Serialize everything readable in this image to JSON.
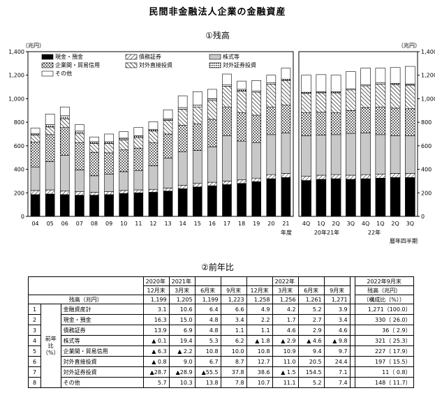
{
  "title": "民間非金融法人企業の金融資産",
  "chart_data": [
    {
      "type": "bar",
      "subtitle": "①残高",
      "unit_left": "（兆円）",
      "xlabel": "年度",
      "ylim": [
        0,
        1400
      ],
      "yticks": [
        "0",
        "200",
        "400",
        "600",
        "800",
        "1,000",
        "1,200",
        "1,400"
      ],
      "categories": [
        "04",
        "05",
        "06",
        "07",
        "08",
        "09",
        "10",
        "11",
        "12",
        "13",
        "14",
        "15",
        "16",
        "17",
        "18",
        "19",
        "20",
        "21"
      ],
      "legend": [
        "現金・預金",
        "債務証券",
        "株式等",
        "企業間・貿易信用",
        "対外直接投資",
        "対外証券投資",
        "その他"
      ],
      "series": [
        {
          "name": "現金・預金",
          "values": [
            185,
            190,
            185,
            180,
            180,
            185,
            195,
            200,
            205,
            215,
            235,
            250,
            260,
            270,
            280,
            295,
            320,
            330
          ]
        },
        {
          "name": "債務証券",
          "values": [
            35,
            35,
            30,
            30,
            25,
            25,
            25,
            25,
            25,
            25,
            30,
            30,
            30,
            30,
            30,
            30,
            35,
            35
          ]
        },
        {
          "name": "株式等",
          "values": [
            200,
            240,
            305,
            185,
            140,
            150,
            160,
            165,
            200,
            255,
            285,
            280,
            300,
            385,
            330,
            300,
            340,
            345
          ]
        },
        {
          "name": "企業間・貿易信用",
          "values": [
            210,
            230,
            235,
            230,
            200,
            180,
            185,
            190,
            195,
            205,
            225,
            225,
            235,
            245,
            240,
            235,
            235,
            235
          ]
        },
        {
          "name": "対外直接投資",
          "values": [
            60,
            65,
            75,
            80,
            75,
            80,
            85,
            90,
            100,
            115,
            135,
            145,
            160,
            175,
            185,
            195,
            195,
            210
          ]
        },
        {
          "name": "対外証券投資",
          "values": [
            15,
            20,
            25,
            20,
            15,
            15,
            15,
            15,
            15,
            15,
            15,
            15,
            15,
            15,
            15,
            10,
            10,
            10
          ]
        },
        {
          "name": "その他",
          "values": [
            45,
            90,
            75,
            55,
            40,
            65,
            55,
            70,
            65,
            75,
            100,
            115,
            80,
            90,
            70,
            90,
            65,
            95
          ]
        }
      ]
    },
    {
      "type": "bar",
      "unit_right": "（兆円）",
      "xlabel": "暦年四半期",
      "ylim": [
        0,
        1400
      ],
      "yticks": [
        "0",
        "200",
        "400",
        "600",
        "800",
        "1,000",
        "1,200",
        "1,400"
      ],
      "categories": [
        "4Q",
        "1Q",
        "2Q",
        "3Q",
        "4Q",
        "1Q",
        "2Q",
        "3Q"
      ],
      "year_labels": [
        "20年21年",
        "22年"
      ],
      "series": [
        {
          "name": "現金・預金",
          "values": [
            305,
            315,
            320,
            315,
            320,
            325,
            330,
            330
          ]
        },
        {
          "name": "債務証券",
          "values": [
            35,
            35,
            35,
            35,
            35,
            35,
            35,
            35
          ]
        },
        {
          "name": "株式等",
          "values": [
            345,
            340,
            340,
            355,
            355,
            335,
            320,
            320
          ]
        },
        {
          "name": "企業間・貿易信用",
          "values": [
            195,
            195,
            185,
            195,
            215,
            235,
            235,
            230
          ]
        },
        {
          "name": "対外直接投資",
          "values": [
            165,
            165,
            170,
            175,
            185,
            195,
            200,
            200
          ]
        },
        {
          "name": "対外証券投資",
          "values": [
            10,
            10,
            10,
            10,
            10,
            10,
            10,
            10
          ]
        },
        {
          "name": "その他",
          "values": [
            145,
            145,
            140,
            145,
            140,
            125,
            135,
            150
          ]
        }
      ]
    }
  ],
  "yoy": {
    "subtitle": "②前年比",
    "header_years": [
      "2020年",
      "2021年",
      "",
      "",
      "",
      "2022年",
      "",
      "",
      "2022年9月末"
    ],
    "header_periods": [
      "12月末",
      "3月末",
      "6月末",
      "9月末",
      "12月末",
      "3月末",
      "6月末",
      "9月末"
    ],
    "header_right": "残高（兆円）",
    "header_right2": "（構成比（%））",
    "balance_label": "残高（兆円）",
    "balance": [
      "1,199",
      "1,205",
      "1,199",
      "1,223",
      "1,258",
      "1,256",
      "1,261",
      "1,271"
    ],
    "side_label": "前年比（%）",
    "rows": [
      {
        "no": "1",
        "label": "金融資産計",
        "vals": [
          "3.1",
          "10.6",
          "6.4",
          "6.6",
          "4.9",
          "4.2",
          "5.2",
          "3.9"
        ],
        "right": "1,271（100.0）"
      },
      {
        "no": "2",
        "label": "現金・預金",
        "vals": [
          "16.3",
          "15.0",
          "4.8",
          "3.4",
          "2.2",
          "1.7",
          "2.7",
          "3.4"
        ],
        "right": "330（ 26.0）"
      },
      {
        "no": "3",
        "label": "債務証券",
        "vals": [
          "13.9",
          "6.9",
          "4.8",
          "1.1",
          "1.1",
          "4.6",
          "2.9",
          "4.6"
        ],
        "right": "36（ 2.9）"
      },
      {
        "no": "4",
        "label": "株式等",
        "vals": [
          "▲ 0.1",
          "19.4",
          "5.3",
          "6.2",
          "▲ 1.8",
          "▲ 2.9",
          "▲ 4.6",
          "▲ 9.8"
        ],
        "right": "321（ 25.3）"
      },
      {
        "no": "5",
        "label": "企業間・貿易信用",
        "vals": [
          "▲ 6.3",
          "▲ 2.2",
          "10.8",
          "10.0",
          "10.8",
          "10.9",
          "9.4",
          "9.7"
        ],
        "right": "227（ 17.9）"
      },
      {
        "no": "6",
        "label": "対外直接投資",
        "vals": [
          "▲ 0.8",
          "9.0",
          "6.7",
          "8.7",
          "12.7",
          "11.0",
          "20.5",
          "24.4"
        ],
        "right": "197（ 15.5）"
      },
      {
        "no": "7",
        "label": "対外証券投資",
        "vals": [
          "▲28.7",
          "▲28.9",
          "▲55.5",
          "37.8",
          "38.6",
          "▲ 1.5",
          "154.5",
          "7.1"
        ],
        "right": "11（ 0.8）"
      },
      {
        "no": "8",
        "label": "その他",
        "vals": [
          "5.7",
          "10.3",
          "13.8",
          "7.8",
          "10.7",
          "11.1",
          "5.2",
          "7.4"
        ],
        "right": "148（ 11.7）"
      }
    ]
  }
}
